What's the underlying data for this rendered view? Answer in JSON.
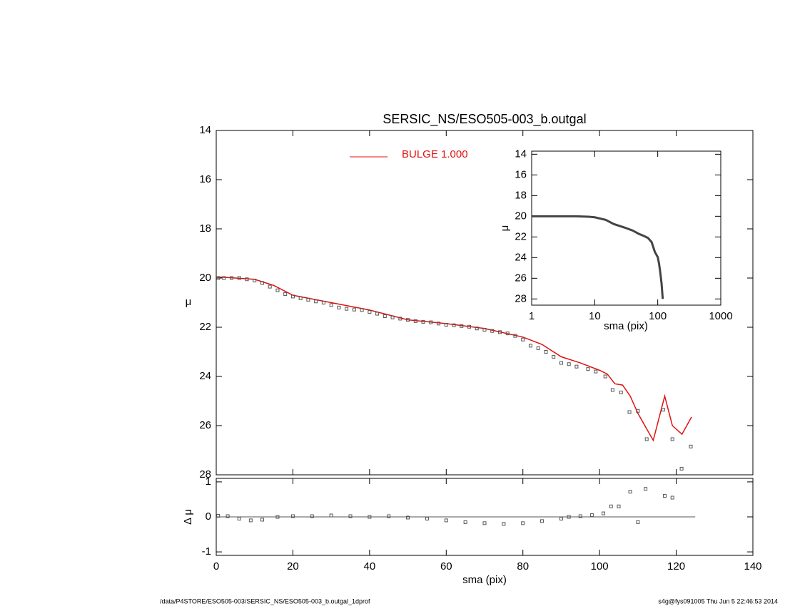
{
  "chart_data": [
    {
      "type": "scatter",
      "title": "SERSIC_NS/ESO505-003_b.outgal",
      "ylabel": "μ",
      "xlim": [
        0,
        140
      ],
      "ylim": [
        28,
        14
      ],
      "yticks": [
        14,
        16,
        18,
        20,
        22,
        24,
        26,
        28
      ],
      "series": [
        {
          "name": "BULGE  1.000",
          "type": "line",
          "color": "#e01010",
          "x": [
            0,
            5,
            10,
            15,
            20,
            30,
            40,
            50,
            60,
            70,
            80,
            85,
            90,
            95,
            100,
            102,
            104,
            106,
            108,
            110,
            114,
            117,
            119,
            121.5,
            124
          ],
          "values": [
            19.95,
            20.0,
            20.05,
            20.3,
            20.7,
            21.0,
            21.3,
            21.7,
            21.85,
            22.05,
            22.4,
            22.7,
            23.2,
            23.45,
            23.75,
            23.9,
            24.3,
            24.35,
            24.8,
            25.5,
            26.6,
            24.8,
            26.0,
            26.35,
            25.65
          ]
        },
        {
          "type": "points",
          "color": "#555555",
          "x": [
            0.5,
            2,
            4,
            6,
            8,
            10,
            12,
            14,
            16,
            18,
            20,
            22,
            24,
            26,
            28,
            30,
            32,
            34,
            36,
            38,
            40,
            42,
            44,
            46,
            48,
            50,
            52,
            54,
            56,
            58,
            60,
            62,
            64,
            66,
            68,
            70,
            72,
            74,
            76,
            78,
            80,
            82,
            84,
            86,
            88,
            90,
            92,
            94,
            97,
            99,
            101.5,
            103.4,
            105.6,
            107.8,
            110,
            112.3,
            116.6,
            119,
            121.4,
            123.8
          ],
          "values": [
            20.0,
            20.0,
            20.0,
            20.0,
            20.05,
            20.1,
            20.2,
            20.35,
            20.5,
            20.65,
            20.75,
            20.82,
            20.88,
            20.95,
            21.0,
            21.1,
            21.2,
            21.25,
            21.28,
            21.3,
            21.38,
            21.45,
            21.55,
            21.6,
            21.65,
            21.7,
            21.75,
            21.78,
            21.8,
            21.85,
            21.9,
            21.92,
            21.95,
            21.98,
            22.05,
            22.1,
            22.15,
            22.2,
            22.25,
            22.35,
            22.5,
            22.75,
            22.85,
            23.0,
            23.2,
            23.45,
            23.5,
            23.6,
            23.7,
            23.8,
            24.0,
            24.55,
            24.65,
            25.45,
            25.4,
            26.55,
            25.35,
            26.55,
            27.75,
            26.85
          ]
        }
      ]
    },
    {
      "type": "scatter",
      "xlabel": "sma (pix)",
      "ylabel": "Δ μ",
      "xlim": [
        0,
        140
      ],
      "xticks": [
        0,
        20,
        40,
        60,
        80,
        100,
        120,
        140
      ],
      "ylim": [
        -1.1,
        1.1
      ],
      "yticks": [
        -1,
        0,
        1
      ],
      "color": "#555555",
      "x": [
        0.5,
        3,
        6,
        9,
        12,
        16,
        20,
        25,
        30,
        35,
        40,
        45,
        50,
        55,
        60,
        65,
        70,
        75,
        80,
        85,
        90,
        92,
        95,
        98,
        101,
        103,
        105,
        108,
        110,
        112,
        117,
        119
      ],
      "values": [
        0.03,
        0.02,
        -0.05,
        -0.1,
        -0.08,
        0,
        0.02,
        0.02,
        0.04,
        0.02,
        0.0,
        0.02,
        -0.02,
        -0.05,
        -0.1,
        -0.15,
        -0.18,
        -0.2,
        -0.18,
        -0.12,
        -0.05,
        0.0,
        0.02,
        0.05,
        0.1,
        0.3,
        0.3,
        0.72,
        -0.15,
        0.8,
        0.6,
        0.55
      ]
    },
    {
      "type": "scatter",
      "xlabel": "sma (pix)",
      "ylabel": "μ",
      "xscale": "log",
      "xlim": [
        1,
        1000
      ],
      "xticks": [
        1,
        10,
        100,
        1000
      ],
      "ylim": [
        28.6,
        13.7
      ],
      "yticks": [
        14,
        16,
        18,
        20,
        22,
        24,
        26,
        28
      ],
      "color": "#444444",
      "x": [
        1,
        2,
        3,
        5,
        8,
        10,
        15,
        20,
        30,
        40,
        50,
        60,
        70,
        80,
        90,
        100,
        105,
        110,
        115,
        120
      ],
      "values": [
        20,
        20,
        20,
        20,
        20.05,
        20.1,
        20.35,
        20.75,
        21.1,
        21.38,
        21.7,
        21.9,
        22.1,
        22.5,
        23.45,
        23.95,
        24.6,
        25.5,
        26.5,
        28.0
      ]
    }
  ],
  "footer": {
    "left": "/data/P4STORE/ESO505-003/SERSIC_NS/ESO505-003_b.outgal_1dprof",
    "right": "s4g@fys091005  Thu Jun  5 22:46:53 2014"
  }
}
